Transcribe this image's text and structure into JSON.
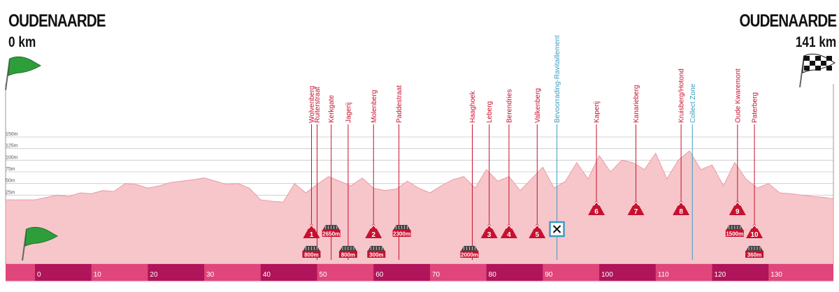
{
  "start": {
    "town": "OUDENAARDE",
    "km": "0 km"
  },
  "finish": {
    "town": "OUDENAARDE",
    "km": "141 km"
  },
  "total_km": 141,
  "colors": {
    "profile": "#f6c6ca",
    "profile_line": "#e88d96",
    "climb": "#c8102e",
    "feed": "#3a9cc4",
    "axis_light": "#e0457b",
    "axis_dark": "#b0145a",
    "flag_green": "#2e9e3a"
  },
  "elevation_ticks": [
    "150m",
    "125m",
    "100m",
    "75m",
    "50m",
    "25m"
  ],
  "km_ticks": [
    "0",
    "10",
    "20",
    "30",
    "40",
    "50",
    "60",
    "70",
    "80",
    "90",
    "100",
    "110",
    "120",
    "130"
  ],
  "chart_data": {
    "type": "area",
    "title": "",
    "xlabel": "",
    "ylabel": "",
    "xlim": [
      0,
      141
    ],
    "ylim": [
      0,
      150
    ],
    "x": [
      0,
      2,
      4,
      6,
      8,
      10,
      12,
      14,
      16,
      18,
      20,
      22,
      24,
      26,
      28,
      30,
      32,
      34,
      36,
      38,
      40,
      42,
      44,
      46,
      48,
      50,
      52,
      54,
      56,
      58,
      60,
      62,
      64,
      66,
      68,
      70,
      72,
      74,
      76,
      78,
      80,
      82,
      84,
      86,
      88,
      90,
      92,
      94,
      96,
      98,
      100,
      102,
      104,
      106,
      108,
      110,
      112,
      114,
      116,
      118,
      120,
      122,
      124,
      126,
      128,
      130,
      132,
      134,
      136,
      138,
      140,
      141
    ],
    "series": [
      {
        "values": [
          15,
          20,
          25,
          22,
          30,
          28,
          35,
          33,
          50,
          48,
          40,
          45,
          52,
          55,
          58,
          62,
          55,
          48,
          50,
          40,
          15,
          12,
          10,
          50,
          30,
          48,
          65,
          55,
          45,
          62,
          40,
          35,
          38,
          55,
          40,
          30,
          45,
          58,
          65,
          40,
          80,
          55,
          65,
          35,
          60,
          85,
          40,
          55,
          95,
          60,
          110,
          75,
          100,
          95,
          80,
          115,
          60,
          100,
          120,
          80,
          90,
          45,
          95,
          60,
          40,
          50,
          30,
          28,
          25,
          22,
          20,
          18
        ]
      }
    ]
  },
  "climbs": [
    {
      "name": "Wolvenberg",
      "km": 49.0,
      "number": "1"
    },
    {
      "name": "Ruiterstraat",
      "km": 50.0
    },
    {
      "name": "Kerkgate",
      "km": 52.5
    },
    {
      "name": "Jagerij",
      "km": 55.5
    },
    {
      "name": "Molenberg",
      "km": 60.0,
      "number": "2"
    },
    {
      "name": "Paddestraat",
      "km": 64.5
    },
    {
      "name": "Haaghoek",
      "km": 77.5
    },
    {
      "name": "Leberg",
      "km": 80.5,
      "number": "3"
    },
    {
      "name": "Berendries",
      "km": 84.0,
      "number": "4"
    },
    {
      "name": "Valkenberg",
      "km": 89.0,
      "number": "5"
    },
    {
      "name": "Kaperij",
      "km": 99.5,
      "number": "6"
    },
    {
      "name": "Kanarieberg",
      "km": 106.5,
      "number": "7"
    },
    {
      "name": "Kruisberg/Hotond",
      "km": 114.5,
      "number": "8"
    },
    {
      "name": "Oude Kwaremont",
      "km": 124.5,
      "number": "9"
    },
    {
      "name": "Paterberg",
      "km": 127.5,
      "number": "10"
    }
  ],
  "feed_zones": [
    {
      "name": "Bevoorrading-Ravitaillement",
      "km": 92.5
    },
    {
      "name": "Collect Zone",
      "km": 116.5
    }
  ],
  "cobbles": [
    {
      "label": "800m",
      "km": 49.0,
      "row": 2
    },
    {
      "label": "2650m",
      "km": 52.5,
      "row": 1
    },
    {
      "label": "800m",
      "km": 55.5,
      "row": 2
    },
    {
      "label": "300m",
      "km": 60.5,
      "row": 2
    },
    {
      "label": "2300m",
      "km": 65.0,
      "row": 1
    },
    {
      "label": "2000m",
      "km": 77.0,
      "row": 2
    },
    {
      "label": "1500m",
      "km": 124.0,
      "row": 1
    },
    {
      "label": "360m",
      "km": 127.5,
      "row": 2
    }
  ]
}
